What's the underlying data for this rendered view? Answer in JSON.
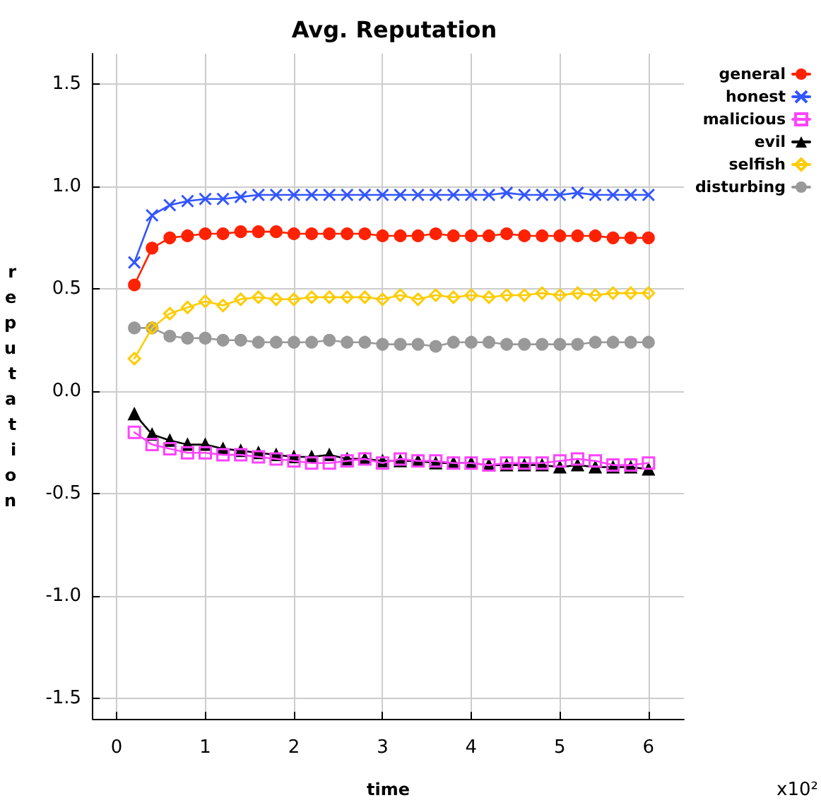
{
  "chart_data": {
    "type": "line",
    "title": "Avg. Reputation",
    "xlabel": "time",
    "ylabel": "reputation",
    "annotations": [
      "x10²"
    ],
    "x": [
      0.2,
      0.4,
      0.6,
      0.8,
      1.0,
      1.2,
      1.4,
      1.6,
      1.8,
      2.0,
      2.2,
      2.4,
      2.6,
      2.8,
      3.0,
      3.2,
      3.4,
      3.6,
      3.8,
      4.0,
      4.2,
      4.4,
      4.6,
      4.8,
      5.0,
      5.2,
      5.4,
      5.6,
      5.8,
      6.0
    ],
    "series": [
      {
        "name": "general",
        "color": "#ff2200",
        "marker": "circle",
        "values": [
          0.52,
          0.7,
          0.75,
          0.76,
          0.77,
          0.77,
          0.78,
          0.78,
          0.78,
          0.77,
          0.77,
          0.77,
          0.77,
          0.77,
          0.76,
          0.76,
          0.76,
          0.77,
          0.76,
          0.76,
          0.76,
          0.77,
          0.76,
          0.76,
          0.76,
          0.76,
          0.76,
          0.75,
          0.75,
          0.75
        ]
      },
      {
        "name": "honest",
        "color": "#3355ff",
        "marker": "cross",
        "values": [
          0.63,
          0.86,
          0.91,
          0.93,
          0.94,
          0.94,
          0.95,
          0.96,
          0.96,
          0.96,
          0.96,
          0.96,
          0.96,
          0.96,
          0.96,
          0.96,
          0.96,
          0.96,
          0.96,
          0.96,
          0.96,
          0.97,
          0.96,
          0.96,
          0.96,
          0.97,
          0.96,
          0.96,
          0.96,
          0.96
        ]
      },
      {
        "name": "malicious",
        "color": "#ff44ff",
        "marker": "square",
        "values": [
          -0.2,
          -0.26,
          -0.28,
          -0.3,
          -0.3,
          -0.31,
          -0.31,
          -0.32,
          -0.33,
          -0.34,
          -0.35,
          -0.35,
          -0.34,
          -0.33,
          -0.35,
          -0.33,
          -0.34,
          -0.34,
          -0.35,
          -0.35,
          -0.36,
          -0.35,
          -0.35,
          -0.35,
          -0.34,
          -0.33,
          -0.34,
          -0.36,
          -0.36,
          -0.35
        ]
      },
      {
        "name": "evil",
        "color": "#000000",
        "marker": "triangle",
        "values": [
          -0.11,
          -0.21,
          -0.24,
          -0.26,
          -0.26,
          -0.28,
          -0.29,
          -0.3,
          -0.31,
          -0.32,
          -0.32,
          -0.31,
          -0.33,
          -0.33,
          -0.34,
          -0.34,
          -0.34,
          -0.35,
          -0.35,
          -0.35,
          -0.36,
          -0.36,
          -0.36,
          -0.36,
          -0.37,
          -0.36,
          -0.37,
          -0.37,
          -0.37,
          -0.38
        ]
      },
      {
        "name": "selfish",
        "color": "#ffcc00",
        "marker": "diamond",
        "values": [
          0.16,
          0.31,
          0.38,
          0.41,
          0.44,
          0.42,
          0.45,
          0.46,
          0.45,
          0.45,
          0.46,
          0.46,
          0.46,
          0.46,
          0.45,
          0.47,
          0.45,
          0.47,
          0.46,
          0.47,
          0.46,
          0.47,
          0.47,
          0.48,
          0.47,
          0.48,
          0.47,
          0.48,
          0.48,
          0.48
        ]
      },
      {
        "name": "disturbing",
        "color": "#999999",
        "marker": "circle",
        "values": [
          0.31,
          0.31,
          0.27,
          0.26,
          0.26,
          0.25,
          0.25,
          0.24,
          0.24,
          0.24,
          0.24,
          0.25,
          0.24,
          0.24,
          0.23,
          0.23,
          0.23,
          0.22,
          0.24,
          0.24,
          0.24,
          0.23,
          0.23,
          0.23,
          0.23,
          0.23,
          0.24,
          0.24,
          0.24,
          0.24
        ]
      }
    ],
    "xlim": [
      -0.27,
      6.4
    ],
    "xticks": [
      0,
      1,
      2,
      3,
      4,
      5,
      6
    ],
    "ylim": [
      -1.6,
      1.65
    ],
    "yticks": [
      -1.5,
      {
        "value": -1,
        "label": "-1.0"
      },
      -0.5,
      {
        "value": 0,
        "label": "0.0"
      },
      0.5,
      {
        "value": 1,
        "label": "1.0"
      },
      1.5
    ],
    "grid": true,
    "legend": "top right",
    "line_style": "solid"
  }
}
